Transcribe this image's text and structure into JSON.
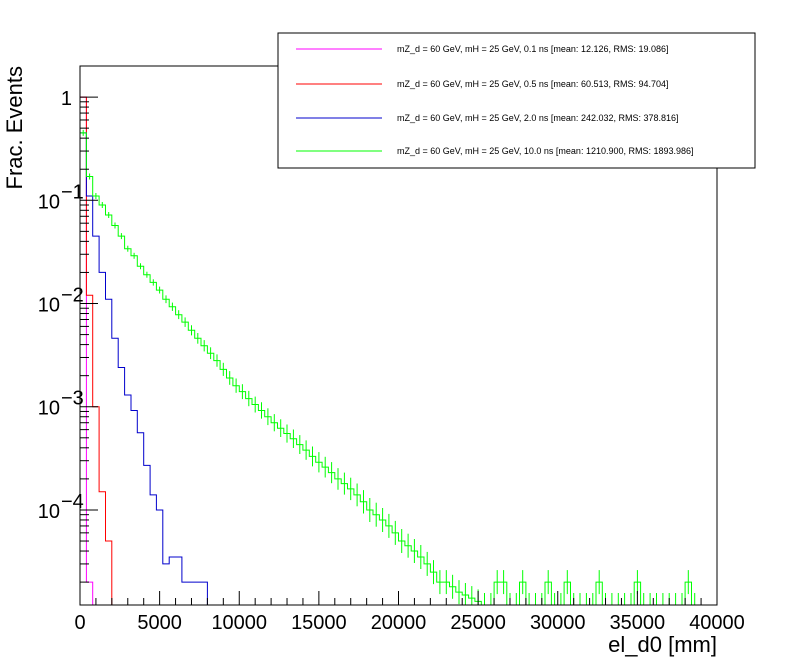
{
  "chart_data": {
    "type": "line",
    "style": "step-histogram",
    "xlabel": "el_d0 [mm]",
    "ylabel": "Frac. Events",
    "xlim": [
      0,
      40000
    ],
    "ylim": [
      1.2e-05,
      2.0
    ],
    "yscale": "log",
    "grid": false,
    "legend_position": "top-right",
    "x_ticks": [
      0,
      5000,
      10000,
      15000,
      20000,
      25000,
      30000,
      35000,
      40000
    ],
    "x_tick_labels": [
      "0",
      "5000",
      "10000",
      "15000",
      "20000",
      "25000",
      "30000",
      "35000",
      "40000"
    ],
    "y_ticks": [
      0.0001,
      0.001,
      0.01,
      0.1,
      1
    ],
    "y_tick_labels": [
      {
        "base": "10",
        "exp": "−4"
      },
      {
        "base": "10",
        "exp": "−3"
      },
      {
        "base": "10",
        "exp": "−2"
      },
      {
        "base": "10",
        "exp": "−1"
      },
      {
        "base": "1",
        "exp": ""
      }
    ],
    "bin_width": 400,
    "series": [
      {
        "name": "mZ_d = 60 GeV, mH = 25 GeV, 0.1 ns [mean: 12.126, RMS: 19.086]",
        "color": "#ff00ff",
        "x": [
          0,
          400,
          800
        ],
        "values": [
          1.0,
          2e-05,
          0
        ]
      },
      {
        "name": "mZ_d = 60 GeV, mH = 25 GeV, 0.5 ns [mean: 60.513, RMS: 94.704]",
        "color": "#ff0000",
        "x": [
          0,
          400,
          800,
          1200,
          1600,
          2000
        ],
        "values": [
          1.0,
          0.012,
          0.001,
          0.00015,
          5e-05,
          0
        ]
      },
      {
        "name": "mZ_d = 60 GeV, mH = 25 GeV, 2.0 ns [mean: 242.032, RMS: 378.816]",
        "color": "#0000cc",
        "x": [
          0,
          400,
          800,
          1200,
          1600,
          2000,
          2400,
          2800,
          3200,
          3600,
          4000,
          4400,
          4800,
          5200,
          5600,
          6000,
          6400,
          6800,
          7200,
          7600,
          8000
        ],
        "values": [
          0.45,
          0.11,
          0.045,
          0.02,
          0.011,
          0.0046,
          0.0024,
          0.0013,
          0.00092,
          0.00056,
          0.00027,
          0.00014,
          0.0001,
          3e-05,
          3.5e-05,
          3.5e-05,
          2e-05,
          2e-05,
          2e-05,
          2e-05,
          0
        ]
      },
      {
        "name": "mZ_d = 60 GeV, mH = 25 GeV, 10.0 ns [mean: 1210.900, RMS: 1893.986]",
        "color": "#00ff00",
        "x": [
          0,
          400,
          800,
          1200,
          1600,
          2000,
          2400,
          2800,
          3200,
          3600,
          4000,
          4400,
          4800,
          5200,
          5600,
          6000,
          6400,
          6800,
          7200,
          7600,
          8000,
          8400,
          8800,
          9200,
          9600,
          10000,
          10400,
          10800,
          11200,
          11600,
          12000,
          12400,
          12800,
          13200,
          13600,
          14000,
          14400,
          14800,
          15200,
          15600,
          16000,
          16400,
          16800,
          17200,
          17600,
          18000,
          18400,
          18800,
          19200,
          19600,
          20000,
          20400,
          20800,
          21200,
          21600,
          22000,
          22400,
          22800,
          23200,
          23600,
          24000,
          24400,
          24800,
          25200,
          25600,
          26000,
          26400,
          26800,
          27200,
          27600,
          28000,
          28400,
          28800,
          29200,
          29600,
          30000,
          30400,
          30800,
          31200,
          31600,
          32000,
          32400,
          32800,
          33200,
          33600,
          34000,
          34400,
          34800,
          35200,
          35600,
          36000,
          36400,
          36800,
          37200,
          37600,
          38000,
          38400,
          38800
        ],
        "values": [
          0.45,
          0.17,
          0.11,
          0.09,
          0.072,
          0.057,
          0.045,
          0.034,
          0.029,
          0.023,
          0.019,
          0.016,
          0.0135,
          0.011,
          0.0093,
          0.0078,
          0.0066,
          0.0055,
          0.0046,
          0.0039,
          0.0033,
          0.0028,
          0.0023,
          0.0019,
          0.0016,
          0.0014,
          0.0012,
          0.00105,
          0.00092,
          0.0008,
          0.0007,
          0.00062,
          0.00055,
          0.00049,
          0.00043,
          0.00038,
          0.00033,
          0.00029,
          0.00026,
          0.00023,
          0.0002,
          0.00018,
          0.00016,
          0.00014,
          0.00012,
          0.0001,
          9e-05,
          8e-05,
          7e-05,
          6e-05,
          5e-05,
          4.5e-05,
          4e-05,
          3.5e-05,
          3e-05,
          2.5e-05,
          2e-05,
          2e-05,
          1.8e-05,
          1.6e-05,
          1.5e-05,
          1.4e-05,
          1.3e-05,
          1.2e-05,
          1.2e-05,
          2e-05,
          2e-05,
          1.2e-05,
          1.2e-05,
          2e-05,
          1.2e-05,
          1.2e-05,
          1.2e-05,
          2e-05,
          1.2e-05,
          1.2e-05,
          2e-05,
          1.2e-05,
          1.2e-05,
          1.2e-05,
          1.2e-05,
          2e-05,
          1.2e-05,
          1.2e-05,
          1.2e-05,
          1.2e-05,
          1.2e-05,
          2e-05,
          1.2e-05,
          1.2e-05,
          1.2e-05,
          1.2e-05,
          1.2e-05,
          1.2e-05,
          1.2e-05,
          2e-05,
          1.2e-05,
          0
        ]
      }
    ]
  }
}
